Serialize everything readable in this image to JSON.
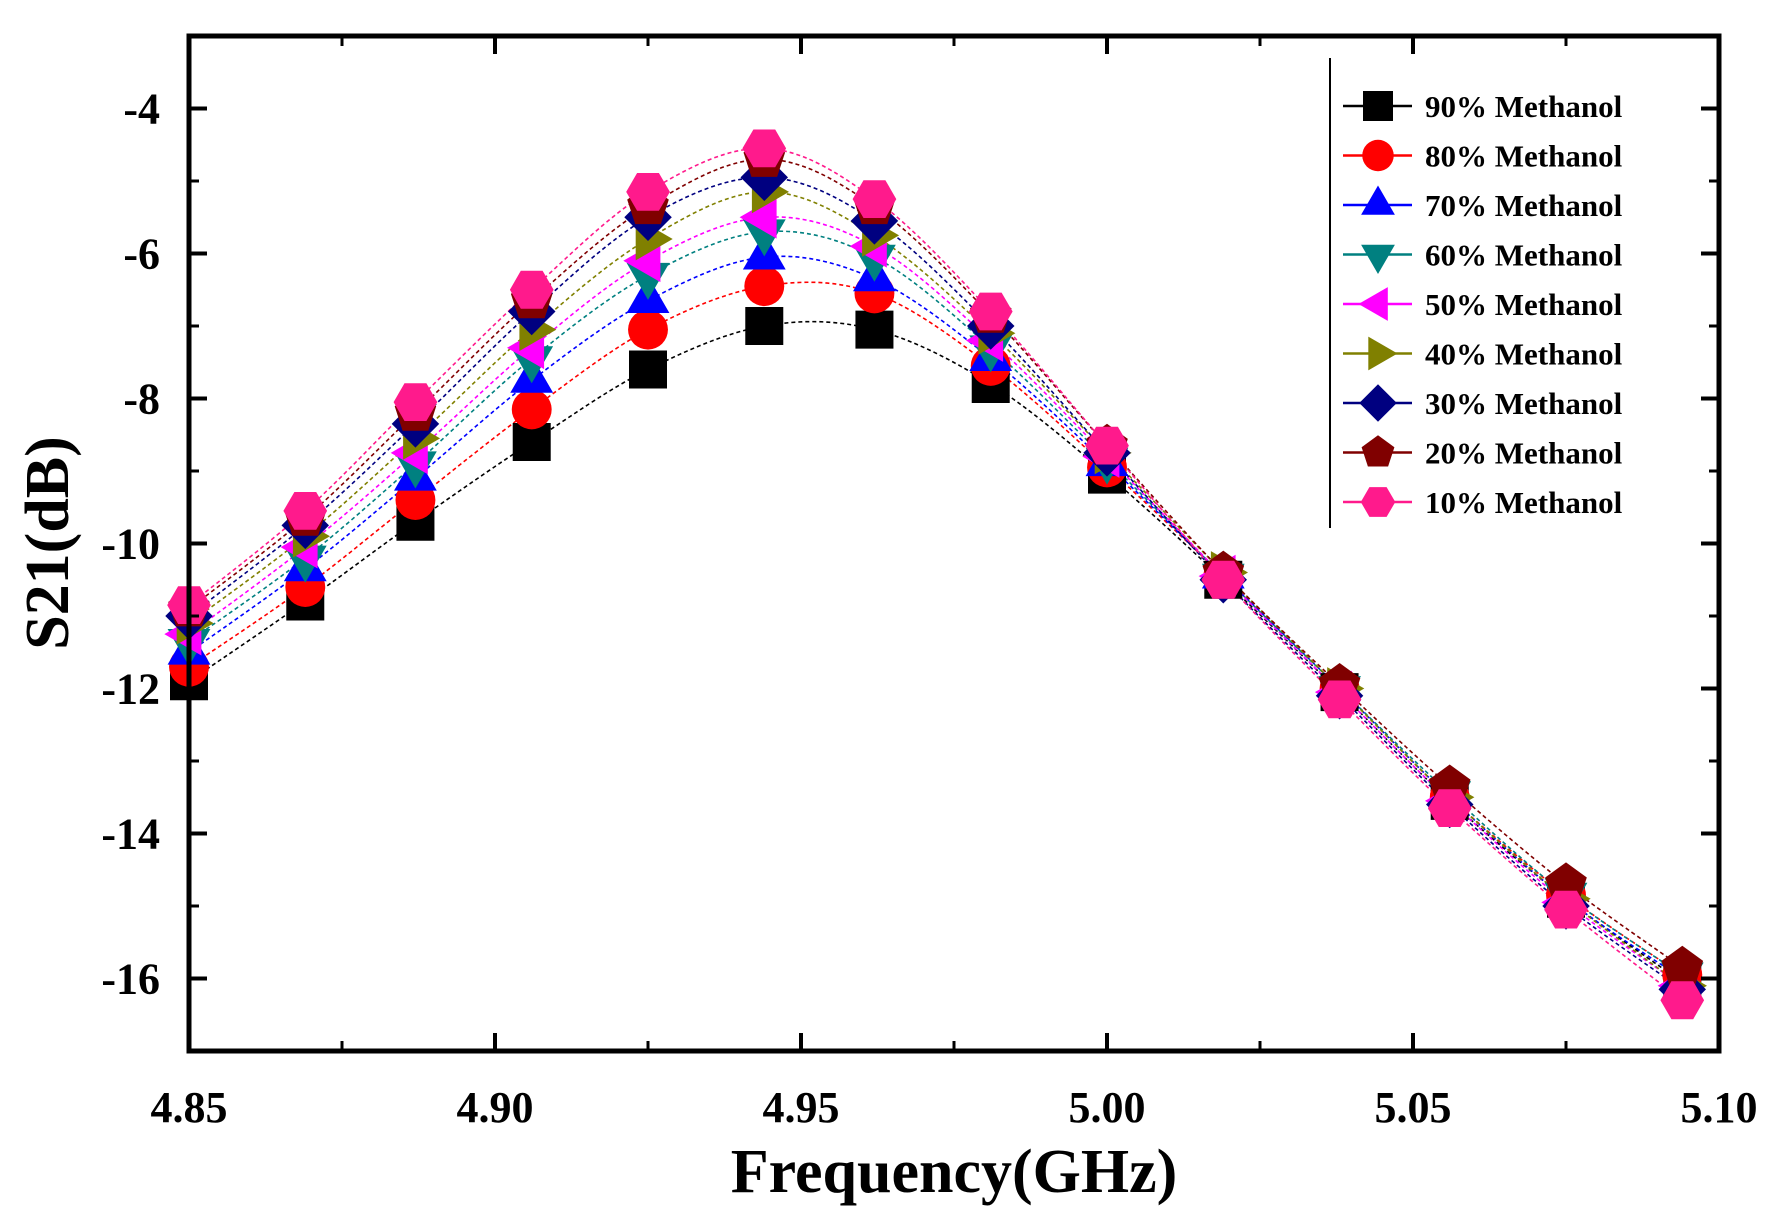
{
  "chart_data": {
    "type": "line",
    "title": "",
    "xlabel": "Frequency(GHz)",
    "ylabel": "S21(dB)",
    "xlim": [
      4.85,
      5.1
    ],
    "ylim": [
      -17,
      -3
    ],
    "x_ticks": [
      4.85,
      4.9,
      4.95,
      5.0,
      5.05,
      5.1
    ],
    "x_tick_labels": [
      "4.85",
      "4.90",
      "4.95",
      "5.00",
      "5.05",
      "5.10"
    ],
    "y_ticks": [
      -16,
      -14,
      -12,
      -10,
      -8,
      -6,
      -4
    ],
    "y_tick_labels": [
      "-16",
      "-14",
      "-12",
      "-10",
      "-8",
      "-6",
      "-4"
    ],
    "grid": false,
    "legend_position": "top-right",
    "x": [
      4.85,
      4.869,
      4.887,
      4.906,
      4.925,
      4.944,
      4.962,
      4.981,
      5.0,
      5.019,
      5.038,
      5.056,
      5.075,
      5.094
    ],
    "series": [
      {
        "name": "90% Methanol",
        "color": "#000000",
        "marker": "square",
        "values": [
          -11.9,
          -10.8,
          -9.7,
          -8.6,
          -7.6,
          -7.0,
          -7.05,
          -7.8,
          -9.05,
          -10.5,
          -12.05,
          -13.55,
          -14.9,
          -16.05
        ]
      },
      {
        "name": "80% Methanol",
        "color": "#ff0000",
        "marker": "circle",
        "values": [
          -11.7,
          -10.6,
          -9.4,
          -8.15,
          -7.05,
          -6.45,
          -6.55,
          -7.55,
          -8.95,
          -10.45,
          -12.0,
          -13.5,
          -14.85,
          -15.95
        ]
      },
      {
        "name": "70% Methanol",
        "color": "#0000ff",
        "marker": "triangle-up",
        "values": [
          -11.5,
          -10.35,
          -9.1,
          -7.75,
          -6.65,
          -6.05,
          -6.35,
          -7.45,
          -8.9,
          -10.45,
          -12.0,
          -13.5,
          -14.9,
          -16.0
        ]
      },
      {
        "name": "60% Methanol",
        "color": "#008080",
        "marker": "triangle-down",
        "values": [
          -11.35,
          -10.2,
          -8.9,
          -7.45,
          -6.3,
          -5.7,
          -6.05,
          -7.3,
          -8.85,
          -10.45,
          -12.0,
          -13.45,
          -14.85,
          -15.95
        ]
      },
      {
        "name": "50% Methanol",
        "color": "#ff00ff",
        "marker": "triangle-left",
        "values": [
          -11.25,
          -10.05,
          -8.75,
          -7.3,
          -6.1,
          -5.5,
          -5.9,
          -7.2,
          -8.8,
          -10.45,
          -12.05,
          -13.55,
          -14.95,
          -16.1
        ]
      },
      {
        "name": "40% Methanol",
        "color": "#808000",
        "marker": "triangle-right",
        "values": [
          -11.1,
          -9.9,
          -8.55,
          -7.05,
          -5.8,
          -5.15,
          -5.75,
          -7.1,
          -8.75,
          -10.4,
          -12.0,
          -13.5,
          -14.9,
          -16.1
        ]
      },
      {
        "name": "30% Methanol",
        "color": "#000080",
        "marker": "diamond",
        "values": [
          -11.0,
          -9.75,
          -8.35,
          -6.8,
          -5.5,
          -4.95,
          -5.55,
          -7.0,
          -8.75,
          -10.5,
          -12.1,
          -13.6,
          -15.0,
          -16.15
        ]
      },
      {
        "name": "20% Methanol",
        "color": "#800000",
        "marker": "pentagon",
        "values": [
          -10.9,
          -9.65,
          -8.2,
          -6.65,
          -5.35,
          -4.7,
          -5.35,
          -6.85,
          -8.65,
          -10.4,
          -11.95,
          -13.35,
          -14.7,
          -15.85
        ]
      },
      {
        "name": "10% Methanol",
        "color": "#ff1a8c",
        "marker": "hexagon",
        "values": [
          -10.85,
          -9.55,
          -8.05,
          -6.5,
          -5.15,
          -4.55,
          -5.25,
          -6.8,
          -8.65,
          -10.5,
          -12.15,
          -13.65,
          -15.05,
          -16.3
        ]
      }
    ]
  }
}
